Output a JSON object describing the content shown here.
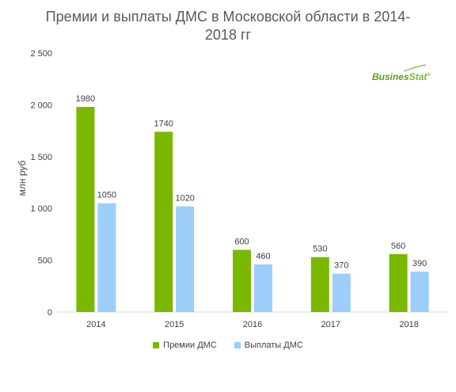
{
  "chart_data": {
    "type": "bar",
    "title": "Премии и выплаты ДМС в Московской области в 2014-2018 гг",
    "ylabel": "млн руб",
    "categories": [
      "2014",
      "2015",
      "2016",
      "2017",
      "2018"
    ],
    "series": [
      {
        "name": "Премии ДМС",
        "values": [
          1980,
          1740,
          600,
          530,
          560
        ],
        "color": "#7ab800"
      },
      {
        "name": "Выплаты ДМС",
        "values": [
          1050,
          1020,
          460,
          370,
          390
        ],
        "color": "#9dcdf9"
      }
    ],
    "ylim": [
      0,
      2500
    ],
    "yticks": [
      "0",
      "500",
      "1 000",
      "1 500",
      "2 000",
      "2 500"
    ],
    "grid": false,
    "legend": "bottom"
  },
  "logo": {
    "part1": "Busines",
    "part2": "Stat",
    "mark": "®"
  }
}
